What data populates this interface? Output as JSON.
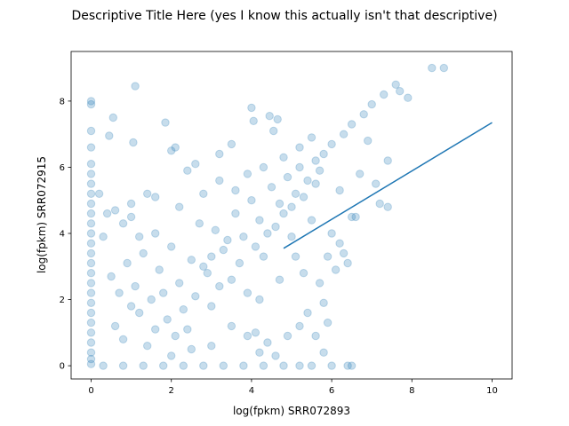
{
  "chart_data": {
    "type": "scatter",
    "title": "Descriptive Title Here (yes I know this actually isn't that descriptive)",
    "xlabel": "log(fpkm) SRR072893",
    "ylabel": "log(fpkm) SRR072915",
    "xlim": [
      -0.5,
      10.5
    ],
    "ylim": [
      -0.4,
      9.5
    ],
    "xticks": [
      0,
      2,
      4,
      6,
      8,
      10
    ],
    "yticks": [
      0,
      2,
      4,
      6,
      8
    ],
    "xtick_labels": [
      "0",
      "2",
      "4",
      "6",
      "8",
      "10"
    ],
    "ytick_labels": [
      "0",
      "2",
      "4",
      "6",
      "8"
    ],
    "grid": false,
    "point_color": "#1f77b4",
    "point_alpha": 0.25,
    "line_color": "#1f77b4",
    "fit_line": {
      "x": [
        4.8,
        10.0
      ],
      "y": [
        3.55,
        7.35
      ]
    },
    "series": [
      {
        "values_note_free": true,
        "points": [
          [
            0.0,
            8.0
          ],
          [
            0.0,
            7.9
          ],
          [
            0.0,
            7.1
          ],
          [
            0.0,
            6.6
          ],
          [
            0.0,
            6.1
          ],
          [
            0.0,
            5.8
          ],
          [
            0.0,
            5.5
          ],
          [
            0.0,
            5.2
          ],
          [
            0.0,
            4.9
          ],
          [
            0.0,
            4.6
          ],
          [
            0.0,
            4.3
          ],
          [
            0.0,
            4.0
          ],
          [
            0.0,
            3.7
          ],
          [
            0.0,
            3.4
          ],
          [
            0.0,
            3.1
          ],
          [
            0.0,
            2.8
          ],
          [
            0.0,
            2.5
          ],
          [
            0.0,
            2.2
          ],
          [
            0.0,
            1.9
          ],
          [
            0.0,
            1.6
          ],
          [
            0.0,
            1.3
          ],
          [
            0.0,
            1.0
          ],
          [
            0.0,
            0.7
          ],
          [
            0.0,
            0.4
          ],
          [
            0.0,
            0.2
          ],
          [
            0.0,
            0.05
          ],
          [
            0.3,
            0.0
          ],
          [
            0.8,
            0.0
          ],
          [
            1.3,
            0.0
          ],
          [
            1.8,
            0.0
          ],
          [
            2.3,
            0.0
          ],
          [
            2.8,
            0.0
          ],
          [
            3.3,
            0.0
          ],
          [
            3.8,
            0.0
          ],
          [
            4.3,
            0.0
          ],
          [
            4.8,
            0.0
          ],
          [
            5.2,
            0.0
          ],
          [
            5.5,
            0.0
          ],
          [
            6.0,
            0.0
          ],
          [
            6.4,
            0.0
          ],
          [
            6.5,
            0.0
          ],
          [
            1.1,
            8.45
          ],
          [
            0.55,
            7.5
          ],
          [
            0.45,
            6.95
          ],
          [
            1.05,
            6.75
          ],
          [
            1.85,
            7.35
          ],
          [
            4.0,
            7.8
          ],
          [
            4.05,
            7.4
          ],
          [
            4.45,
            7.55
          ],
          [
            4.65,
            7.45
          ],
          [
            4.55,
            7.1
          ],
          [
            8.5,
            9.0
          ],
          [
            8.8,
            9.0
          ],
          [
            7.6,
            8.5
          ],
          [
            7.3,
            8.2
          ],
          [
            7.0,
            7.9
          ],
          [
            6.8,
            7.6
          ],
          [
            6.5,
            7.3
          ],
          [
            6.3,
            7.0
          ],
          [
            6.0,
            6.7
          ],
          [
            5.8,
            6.4
          ],
          [
            5.6,
            6.2
          ],
          [
            7.9,
            8.1
          ],
          [
            7.7,
            8.3
          ],
          [
            6.9,
            6.8
          ],
          [
            7.4,
            6.2
          ],
          [
            7.1,
            5.5
          ],
          [
            7.2,
            4.9
          ],
          [
            7.4,
            4.8
          ],
          [
            6.6,
            4.5
          ],
          [
            6.5,
            4.5
          ],
          [
            6.3,
            3.4
          ],
          [
            6.4,
            3.1
          ],
          [
            6.1,
            2.9
          ],
          [
            5.8,
            1.9
          ],
          [
            5.9,
            1.3
          ],
          [
            5.6,
            0.9
          ],
          [
            5.8,
            0.4
          ],
          [
            4.6,
            0.3
          ],
          [
            4.2,
            0.4
          ],
          [
            4.4,
            0.7
          ],
          [
            4.1,
            1.0
          ],
          [
            3.9,
            0.9
          ],
          [
            0.2,
            5.2
          ],
          [
            0.3,
            3.9
          ],
          [
            0.4,
            4.6
          ],
          [
            0.6,
            4.7
          ],
          [
            0.8,
            4.3
          ],
          [
            1.0,
            4.9
          ],
          [
            1.4,
            5.2
          ],
          [
            1.6,
            5.1
          ],
          [
            2.0,
            6.5
          ],
          [
            2.1,
            6.6
          ],
          [
            2.4,
            5.9
          ],
          [
            2.6,
            6.1
          ],
          [
            3.2,
            6.4
          ],
          [
            3.5,
            6.7
          ],
          [
            0.5,
            2.7
          ],
          [
            0.7,
            2.2
          ],
          [
            0.9,
            3.1
          ],
          [
            1.1,
            2.4
          ],
          [
            1.2,
            1.6
          ],
          [
            1.3,
            3.4
          ],
          [
            1.5,
            2.0
          ],
          [
            1.7,
            2.9
          ],
          [
            1.9,
            1.4
          ],
          [
            2.0,
            3.6
          ],
          [
            2.2,
            2.5
          ],
          [
            2.4,
            1.1
          ],
          [
            2.5,
            3.2
          ],
          [
            2.7,
            4.3
          ],
          [
            2.9,
            2.8
          ],
          [
            3.0,
            1.8
          ],
          [
            3.1,
            4.1
          ],
          [
            3.3,
            3.5
          ],
          [
            3.5,
            2.6
          ],
          [
            3.6,
            4.6
          ],
          [
            3.8,
            3.9
          ],
          [
            3.9,
            2.2
          ],
          [
            4.0,
            5.0
          ],
          [
            4.2,
            4.4
          ],
          [
            4.3,
            3.3
          ],
          [
            4.5,
            5.4
          ],
          [
            4.7,
            4.9
          ],
          [
            4.9,
            5.7
          ],
          [
            5.1,
            5.2
          ],
          [
            5.2,
            6.0
          ],
          [
            5.4,
            5.6
          ],
          [
            5.5,
            4.4
          ],
          [
            5.7,
            5.9
          ],
          [
            5.0,
            3.9
          ],
          [
            5.3,
            2.8
          ],
          [
            0.6,
            1.2
          ],
          [
            0.8,
            0.8
          ],
          [
            1.0,
            1.8
          ],
          [
            1.4,
            0.6
          ],
          [
            1.6,
            1.1
          ],
          [
            1.8,
            2.2
          ],
          [
            2.1,
            0.9
          ],
          [
            2.3,
            1.7
          ],
          [
            2.6,
            2.1
          ],
          [
            2.8,
            3.0
          ],
          [
            3.0,
            3.3
          ],
          [
            3.2,
            2.4
          ],
          [
            3.4,
            3.8
          ],
          [
            3.7,
            3.1
          ],
          [
            4.1,
            3.6
          ],
          [
            4.4,
            4.0
          ],
          [
            4.6,
            4.2
          ],
          [
            4.8,
            4.6
          ],
          [
            5.0,
            4.8
          ],
          [
            5.3,
            5.1
          ],
          [
            5.6,
            5.5
          ],
          [
            2.5,
            0.5
          ],
          [
            2.0,
            0.3
          ],
          [
            3.0,
            0.6
          ],
          [
            3.5,
            1.2
          ],
          [
            4.2,
            2.0
          ],
          [
            4.7,
            2.6
          ],
          [
            5.1,
            3.3
          ],
          [
            1.2,
            3.9
          ],
          [
            1.0,
            4.5
          ],
          [
            1.6,
            4.0
          ],
          [
            2.2,
            4.8
          ],
          [
            2.8,
            5.2
          ],
          [
            3.2,
            5.6
          ],
          [
            3.6,
            5.3
          ],
          [
            3.9,
            5.8
          ],
          [
            4.3,
            6.0
          ],
          [
            4.8,
            6.3
          ],
          [
            5.2,
            6.6
          ],
          [
            5.5,
            6.9
          ],
          [
            6.2,
            5.3
          ],
          [
            6.7,
            5.8
          ],
          [
            6.0,
            4.0
          ],
          [
            6.2,
            3.7
          ],
          [
            5.9,
            3.3
          ],
          [
            5.7,
            2.5
          ],
          [
            5.4,
            1.6
          ],
          [
            5.2,
            1.2
          ],
          [
            4.9,
            0.9
          ]
        ]
      }
    ]
  }
}
